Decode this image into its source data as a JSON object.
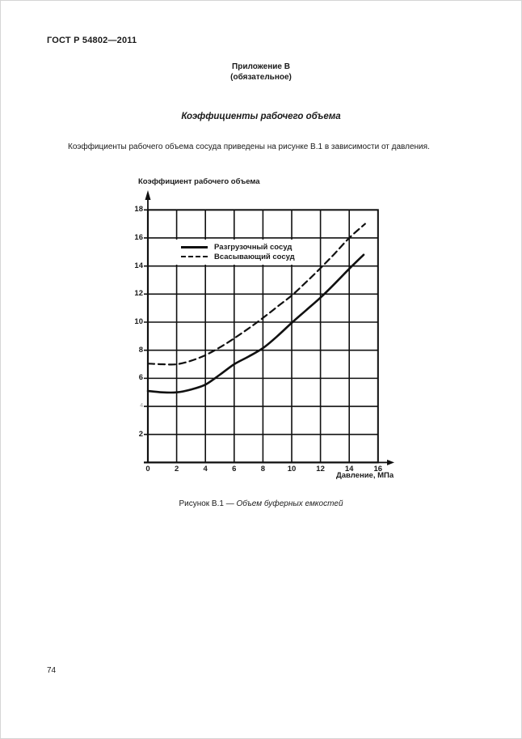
{
  "header": {
    "doc_number": "ГОСТ Р 54802—2011"
  },
  "annex": {
    "label": "Приложение В",
    "note": "(обязательное)"
  },
  "section": {
    "title": "Коэффициенты рабочего объема"
  },
  "paragraph": "Коэффициенты рабочего объема сосуда приведены на рисунке В.1 в зависимости от давления.",
  "figure": {
    "caption_prefix": "Рисунок В.1 — ",
    "caption_title": "Объем буферных емкостей"
  },
  "page": {
    "number": "74"
  },
  "chart_data": {
    "type": "line",
    "title": "Рисунок В.1 — Объем буферных емкостей",
    "xlabel": "Давление, МПа",
    "ylabel": "Коэффициент рабочего объема",
    "xlim": [
      0,
      16
    ],
    "ylim": [
      0,
      18
    ],
    "xticks": [
      0,
      2,
      4,
      6,
      8,
      10,
      12,
      14,
      16
    ],
    "yticks": [
      2,
      4,
      6,
      8,
      10,
      12,
      14,
      16,
      18
    ],
    "grid": true,
    "legend_position": "upper-left-inside",
    "line_color": "#111111",
    "series": [
      {
        "name": "Разгрузочный сосуд",
        "style": "solid",
        "x": [
          0,
          1,
          2,
          3,
          4,
          5,
          6,
          7,
          8,
          9,
          10,
          11,
          12,
          13,
          14,
          15
        ],
        "y": [
          5.1,
          5.0,
          5.0,
          5.2,
          5.55,
          6.25,
          7.0,
          7.55,
          8.15,
          9.0,
          9.95,
          10.85,
          11.75,
          12.75,
          13.8,
          14.8
        ]
      },
      {
        "name": "Всасывающий сосуд",
        "style": "dashed",
        "x": [
          0,
          1,
          2,
          3,
          4,
          5,
          6,
          7,
          8,
          9,
          10,
          11,
          12,
          13,
          14,
          15.1
        ],
        "y": [
          7.05,
          7.0,
          7.0,
          7.25,
          7.65,
          8.2,
          8.85,
          9.55,
          10.3,
          11.1,
          11.9,
          12.85,
          13.85,
          14.9,
          16.0,
          17.0
        ]
      }
    ]
  }
}
